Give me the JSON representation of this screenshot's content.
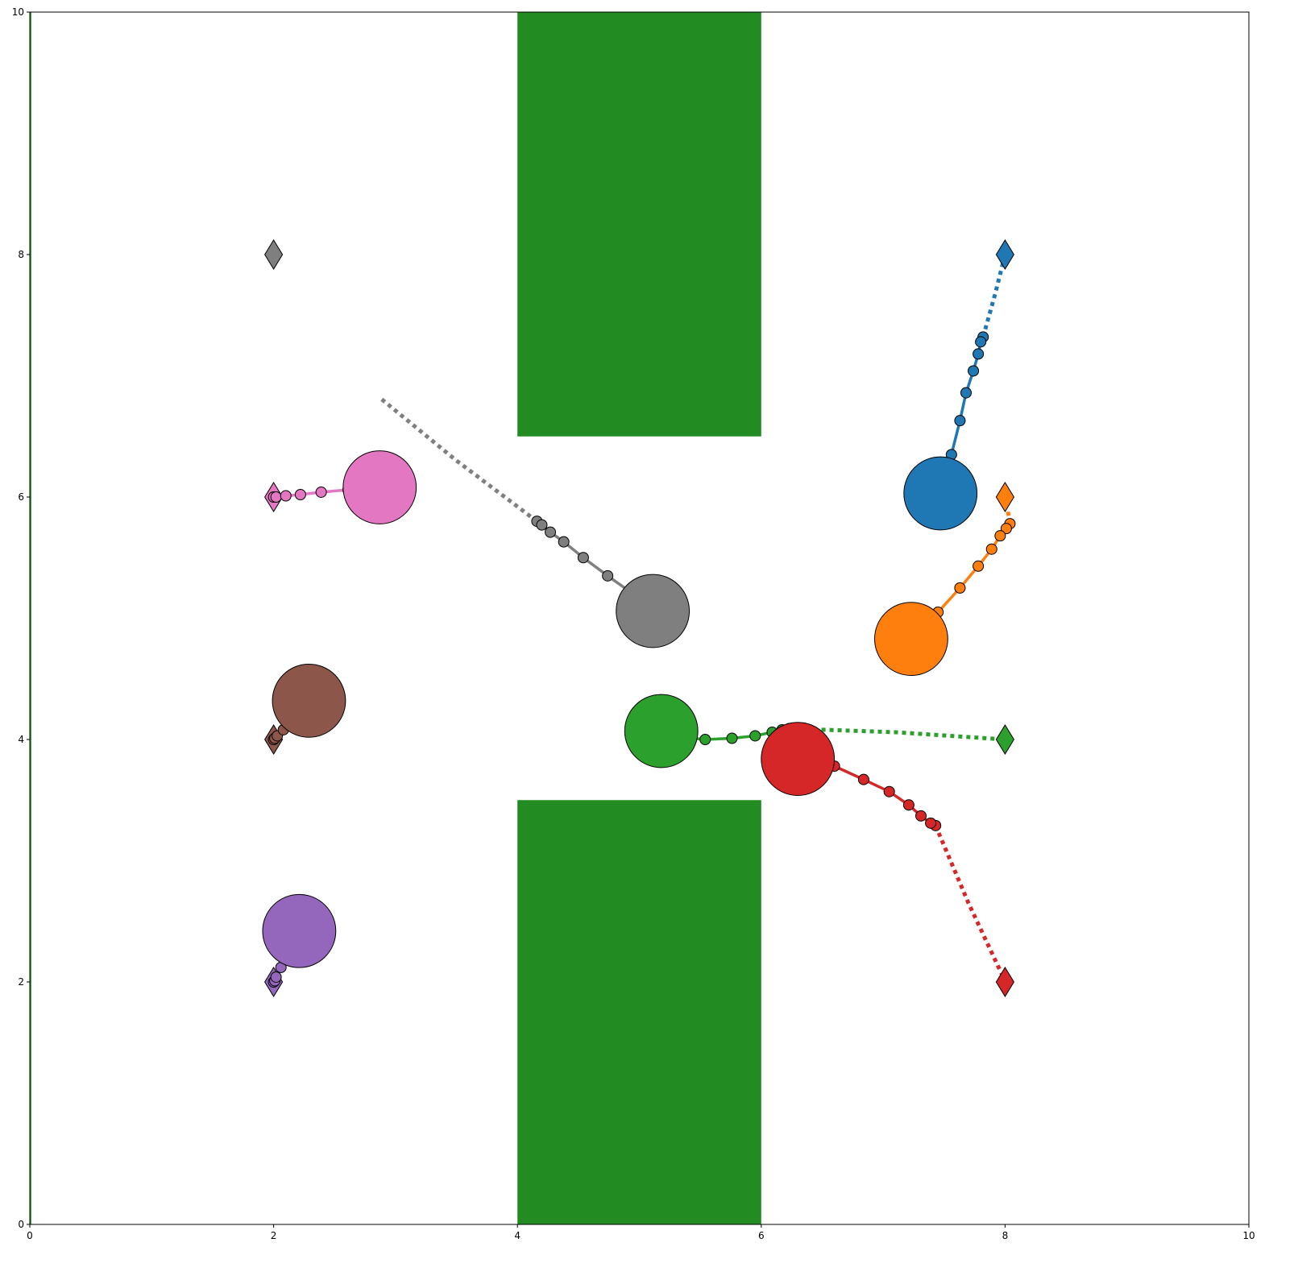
{
  "chart_data": {
    "type": "scatter",
    "title": "",
    "xlabel": "",
    "ylabel": "",
    "xlim": [
      0,
      10
    ],
    "ylim": [
      0,
      10
    ],
    "grid": false,
    "x_ticks": [
      "0",
      "2",
      "4",
      "6",
      "8",
      "10"
    ],
    "y_ticks": [
      "0",
      "2",
      "4",
      "6",
      "8",
      "10"
    ],
    "obstacles": [
      {
        "x": [
          4,
          6
        ],
        "y": [
          6.5,
          10
        ],
        "color": "#228b22"
      },
      {
        "x": [
          4,
          6
        ],
        "y": [
          0,
          3.5
        ],
        "color": "#228b22"
      },
      {
        "x": [
          0,
          0.012
        ],
        "y": [
          0,
          10
        ],
        "color": "#228b22"
      }
    ],
    "agents": [
      {
        "color": "#1f77b4",
        "goal": [
          8,
          8
        ],
        "position": [
          7.47,
          6.03
        ],
        "radius": 0.3,
        "history": [
          [
            7.82,
            7.32
          ],
          [
            7.8,
            7.28
          ],
          [
            7.78,
            7.18
          ],
          [
            7.74,
            7.04
          ],
          [
            7.68,
            6.86
          ],
          [
            7.63,
            6.63
          ],
          [
            7.56,
            6.35
          ]
        ],
        "plan": [
          [
            7.82,
            7.32
          ],
          [
            7.92,
            7.68
          ],
          [
            8.0,
            8.0
          ]
        ]
      },
      {
        "color": "#ff7f0e",
        "goal": [
          8,
          6
        ],
        "position": [
          7.23,
          4.83
        ],
        "radius": 0.3,
        "history": [
          [
            8.04,
            5.78
          ],
          [
            8.01,
            5.74
          ],
          [
            7.96,
            5.68
          ],
          [
            7.89,
            5.57
          ],
          [
            7.78,
            5.43
          ],
          [
            7.63,
            5.25
          ],
          [
            7.45,
            5.05
          ]
        ],
        "plan": [
          [
            8.04,
            5.78
          ],
          [
            8.02,
            5.9
          ]
        ]
      },
      {
        "color": "#2ca02c",
        "goal": [
          8,
          4
        ],
        "position": [
          5.18,
          4.07
        ],
        "radius": 0.3,
        "history": [
          [
            6.23,
            4.09
          ],
          [
            6.17,
            4.08
          ],
          [
            6.09,
            4.06
          ],
          [
            5.95,
            4.03
          ],
          [
            5.76,
            4.01
          ],
          [
            5.54,
            4.0
          ],
          [
            5.34,
            4.02
          ]
        ],
        "plan": [
          [
            6.23,
            4.09
          ],
          [
            7.1,
            4.06
          ],
          [
            8.0,
            4.0
          ]
        ]
      },
      {
        "color": "#d62728",
        "goal": [
          8,
          2
        ],
        "position": [
          6.3,
          3.84
        ],
        "radius": 0.3,
        "history": [
          [
            7.43,
            3.29
          ],
          [
            7.39,
            3.31
          ],
          [
            7.31,
            3.37
          ],
          [
            7.21,
            3.46
          ],
          [
            7.05,
            3.57
          ],
          [
            6.84,
            3.67
          ],
          [
            6.6,
            3.78
          ]
        ],
        "plan": [
          [
            7.43,
            3.29
          ],
          [
            7.7,
            2.65
          ],
          [
            7.98,
            2.05
          ]
        ]
      },
      {
        "color": "#9467bd",
        "goal": [
          2,
          2
        ],
        "position": [
          2.21,
          2.42
        ],
        "radius": 0.3,
        "history": [
          [
            2.0,
            2.0
          ],
          [
            2.01,
            2.01
          ],
          [
            2.02,
            2.04
          ],
          [
            2.06,
            2.12
          ],
          [
            2.12,
            2.24
          ]
        ],
        "plan": []
      },
      {
        "color": "#8c564b",
        "goal": [
          2,
          4
        ],
        "position": [
          2.29,
          4.32
        ],
        "radius": 0.3,
        "history": [
          [
            2.0,
            4.0
          ],
          [
            2.01,
            4.01
          ],
          [
            2.03,
            4.03
          ],
          [
            2.08,
            4.08
          ],
          [
            2.17,
            4.19
          ]
        ],
        "plan": []
      },
      {
        "color": "#e377c2",
        "goal": [
          2,
          6
        ],
        "position": [
          2.87,
          6.08
        ],
        "radius": 0.3,
        "history": [
          [
            2.0,
            6.0
          ],
          [
            2.02,
            6.0
          ],
          [
            2.1,
            6.01
          ],
          [
            2.22,
            6.02
          ],
          [
            2.39,
            6.04
          ],
          [
            2.61,
            6.06
          ]
        ],
        "plan": []
      },
      {
        "color": "#7f7f7f",
        "goal": [
          2,
          8
        ],
        "position": [
          5.11,
          5.06
        ],
        "radius": 0.3,
        "history": [
          [
            4.16,
            5.8
          ],
          [
            4.2,
            5.77
          ],
          [
            4.27,
            5.71
          ],
          [
            4.38,
            5.63
          ],
          [
            4.54,
            5.5
          ],
          [
            4.74,
            5.35
          ],
          [
            4.95,
            5.2
          ]
        ],
        "plan": [
          [
            4.16,
            5.8
          ],
          [
            3.5,
            6.3
          ],
          [
            2.87,
            6.82
          ]
        ]
      }
    ]
  }
}
